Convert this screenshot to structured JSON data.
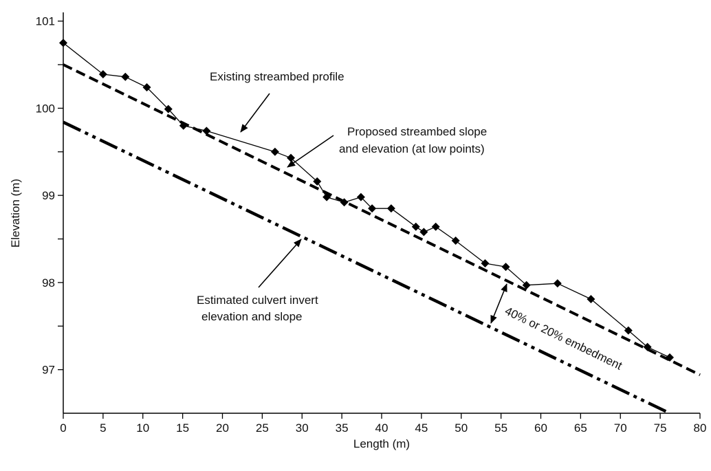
{
  "chart_data": {
    "type": "line",
    "title": "",
    "xlabel": "Length (m)",
    "ylabel": "Elevation (m)",
    "xlim": [
      0,
      80
    ],
    "ylim": [
      96.5,
      101.1
    ],
    "grid": false,
    "x_ticks": [
      0,
      5,
      10,
      15,
      20,
      25,
      30,
      35,
      40,
      45,
      50,
      55,
      60,
      65,
      70,
      75,
      80
    ],
    "x_tick_labels": [
      "0",
      "5",
      "10",
      "15",
      "20",
      "25",
      "30",
      "35",
      "40",
      "45",
      "50",
      "55",
      "60",
      "65",
      "70",
      "75",
      "80"
    ],
    "y_labeled_ticks": [
      97,
      98,
      99,
      100,
      101
    ],
    "y_tick_labels": [
      "97",
      "98",
      "99",
      "100",
      "101"
    ],
    "y_minor_ticks": [
      97.5,
      98.5,
      99.5,
      100.5
    ],
    "series": [
      {
        "style": "solid-with-diamond-markers",
        "color": "#000000",
        "points": [
          [
            0,
            100.75
          ],
          [
            5,
            100.39
          ],
          [
            7.8,
            100.36
          ],
          [
            10.5,
            100.24
          ],
          [
            13.2,
            99.99
          ],
          [
            15.1,
            99.8
          ],
          [
            18,
            99.74
          ],
          [
            26.6,
            99.5
          ],
          [
            28.6,
            99.43
          ],
          [
            31.9,
            99.16
          ],
          [
            33.1,
            98.98
          ],
          [
            35.3,
            98.92
          ],
          [
            37.4,
            98.98
          ],
          [
            38.8,
            98.85
          ],
          [
            41.2,
            98.85
          ],
          [
            44.3,
            98.64
          ],
          [
            45.3,
            98.58
          ],
          [
            46.8,
            98.64
          ],
          [
            49.3,
            98.48
          ],
          [
            53,
            98.22
          ],
          [
            55.6,
            98.18
          ],
          [
            58.2,
            97.97
          ],
          [
            62.1,
            97.99
          ],
          [
            66.3,
            97.81
          ],
          [
            71,
            97.45
          ],
          [
            73.4,
            97.26
          ],
          [
            76.2,
            97.14
          ]
        ]
      },
      {
        "style": "dashed",
        "color": "#000000",
        "points": [
          [
            0,
            100.5
          ],
          [
            80,
            96.94
          ]
        ]
      },
      {
        "style": "dash-dot-dot",
        "color": "#000000",
        "points": [
          [
            0,
            99.84
          ],
          [
            76.2,
            96.5
          ]
        ]
      }
    ],
    "annotations": [
      {
        "text": "Existing streambed profile",
        "arrow_to": [
          22.5,
          99.66
        ]
      },
      {
        "lines": [
          "Proposed streambed slope",
          "and elevation (at low points)"
        ],
        "arrow_to": [
          28.7,
          99.25
        ]
      },
      {
        "lines": [
          "Estimated culvert invert",
          "elevation and slope"
        ],
        "arrow_to": [
          30.3,
          98.53
        ]
      },
      {
        "text": "40% or 20% embedment",
        "arrow_between": [
          [
            54.5,
            97.55
          ],
          [
            56.5,
            97.95
          ]
        ]
      }
    ]
  }
}
